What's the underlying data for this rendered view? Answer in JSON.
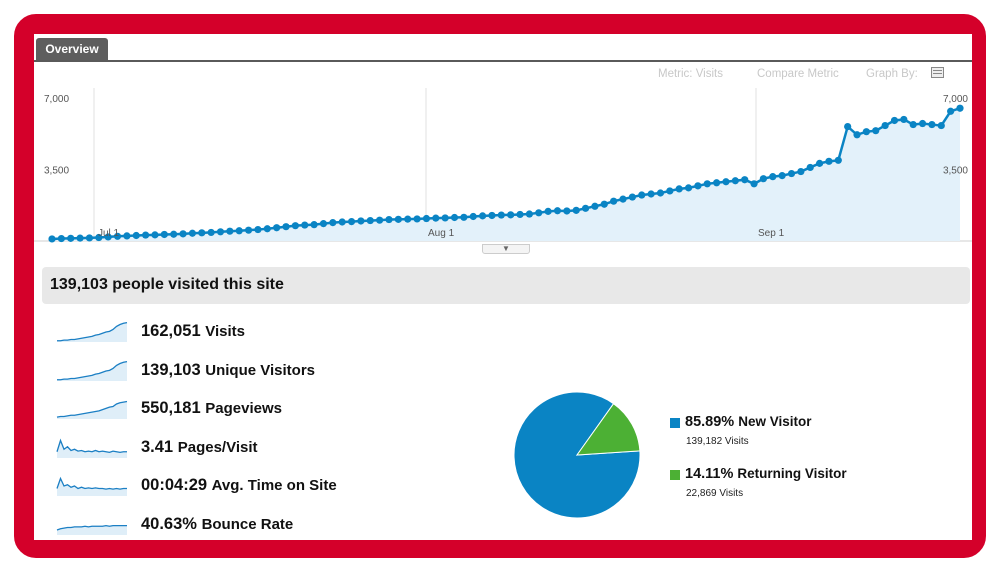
{
  "tab": {
    "label": "Overview"
  },
  "controls": {
    "metric": "Metric: Visits",
    "compare": "Compare Metric",
    "graph_by": "Graph By:"
  },
  "colors": {
    "frame": "#d4002a",
    "line": "#0a84c4",
    "new_visitor": "#0a84c4",
    "returning_visitor": "#4cb034",
    "summary_bg": "#e8e8e8"
  },
  "chart_data": {
    "type": "area",
    "y_ticks_left": [
      "7,000",
      "3,500"
    ],
    "y_ticks_right": [
      "7,000",
      "3,500"
    ],
    "x_labels": [
      "Jul 1",
      "Aug 1",
      "Sep 1"
    ],
    "ylim": [
      0,
      7000
    ],
    "grid": true,
    "values": [
      100,
      120,
      130,
      140,
      150,
      170,
      200,
      230,
      250,
      270,
      290,
      300,
      320,
      330,
      350,
      380,
      400,
      420,
      450,
      480,
      500,
      530,
      560,
      600,
      650,
      700,
      750,
      780,
      800,
      850,
      900,
      930,
      950,
      980,
      1000,
      1020,
      1050,
      1060,
      1070,
      1080,
      1100,
      1120,
      1130,
      1150,
      1160,
      1200,
      1230,
      1250,
      1270,
      1280,
      1300,
      1320,
      1380,
      1450,
      1480,
      1470,
      1500,
      1600,
      1700,
      1800,
      1950,
      2050,
      2150,
      2250,
      2300,
      2350,
      2450,
      2550,
      2600,
      2700,
      2800,
      2850,
      2900,
      2950,
      3000,
      2800,
      3050,
      3150,
      3200,
      3300,
      3400,
      3600,
      3800,
      3900,
      3950,
      5600,
      5200,
      5350,
      5400,
      5650,
      5900,
      5950,
      5700,
      5750,
      5700,
      5650,
      6350,
      6500
    ]
  },
  "summary": {
    "headline": "139,103 people visited this site"
  },
  "metrics": [
    {
      "value": "162,051",
      "label": "Visits",
      "spark": [
        2,
        2,
        3,
        3,
        4,
        4,
        5,
        6,
        7,
        8,
        9,
        11,
        12,
        14,
        16,
        17,
        20,
        25,
        28,
        30,
        31
      ]
    },
    {
      "value": "139,103",
      "label": "Unique Visitors",
      "spark": [
        2,
        2,
        3,
        3,
        4,
        4,
        5,
        6,
        7,
        8,
        9,
        11,
        12,
        14,
        16,
        17,
        20,
        25,
        28,
        30,
        31
      ]
    },
    {
      "value": "550,181",
      "label": "Pageviews",
      "spark": [
        3,
        4,
        4,
        5,
        6,
        6,
        7,
        8,
        9,
        10,
        11,
        12,
        13,
        15,
        17,
        19,
        20,
        24,
        26,
        27,
        28
      ]
    },
    {
      "value": "3.41",
      "label": "Pages/Visit",
      "spark": [
        10,
        28,
        14,
        18,
        12,
        14,
        11,
        12,
        10,
        11,
        10,
        12,
        10,
        11,
        10,
        9,
        11,
        10,
        9,
        10,
        10
      ]
    },
    {
      "value": "00:04:29",
      "label": "Avg. Time on Site",
      "spark": [
        12,
        28,
        16,
        18,
        14,
        16,
        12,
        14,
        12,
        13,
        12,
        13,
        12,
        12,
        11,
        12,
        11,
        12,
        11,
        12,
        12
      ]
    },
    {
      "value": "40.63%",
      "label": "Bounce Rate",
      "spark": [
        8,
        10,
        11,
        12,
        12,
        13,
        13,
        13,
        14,
        13,
        14,
        14,
        14,
        14,
        15,
        14,
        15,
        15,
        15,
        15,
        15
      ]
    }
  ],
  "visitor_types": [
    {
      "percent": "85.89%",
      "name": "New Visitor",
      "visits": "139,182 Visits",
      "fraction": 0.8589,
      "color": "#0a84c4"
    },
    {
      "percent": "14.11%",
      "name": "Returning Visitor",
      "visits": "22,869 Visits",
      "fraction": 0.1411,
      "color": "#4cb034"
    }
  ]
}
